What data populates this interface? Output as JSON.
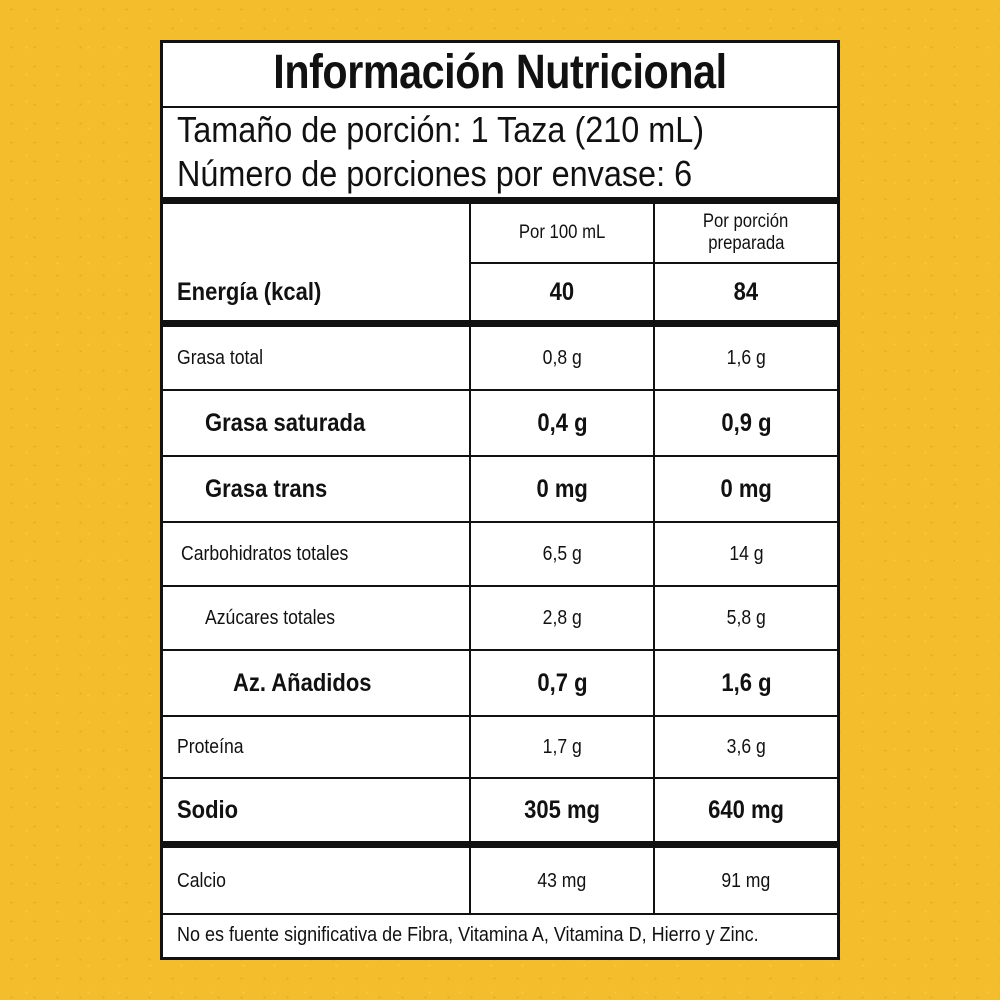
{
  "title": "Información Nutricional",
  "serving_size": "Tamaño de porción: 1 Taza (210 mL)",
  "servings_per_container": "Número de porciones por envase: 6",
  "columns": {
    "per_100": "Por 100 mL",
    "per_serving_line1": "Por porción",
    "per_serving_line2": "preparada"
  },
  "rows": [
    {
      "label": "Energía (kcal)",
      "per_100": "40",
      "per_serving": "84"
    },
    {
      "label": "Grasa total",
      "per_100": "0,8 g",
      "per_serving": "1,6 g"
    },
    {
      "label": "Grasa saturada",
      "per_100": "0,4 g",
      "per_serving": "0,9 g"
    },
    {
      "label": "Grasa trans",
      "per_100": "0 mg",
      "per_serving": "0 mg"
    },
    {
      "label": "Carbohidratos totales",
      "per_100": "6,5 g",
      "per_serving": "14 g"
    },
    {
      "label": "Azúcares totales",
      "per_100": "2,8 g",
      "per_serving": "5,8 g"
    },
    {
      "label": "Az. Añadidos",
      "per_100": "0,7 g",
      "per_serving": "1,6 g"
    },
    {
      "label": "Proteína",
      "per_100": "1,7 g",
      "per_serving": "3,6 g"
    },
    {
      "label": "Sodio",
      "per_100": "305 mg",
      "per_serving": "640 mg"
    },
    {
      "label": "Calcio",
      "per_100": "43 mg",
      "per_serving": "91 mg"
    }
  ],
  "footnote": "No es fuente significativa de Fibra, Vitamina A, Vitamina D, Hierro y Zinc.",
  "colors": {
    "background": "#f4bd2c",
    "label": "#ffffff",
    "ink": "#111111"
  }
}
